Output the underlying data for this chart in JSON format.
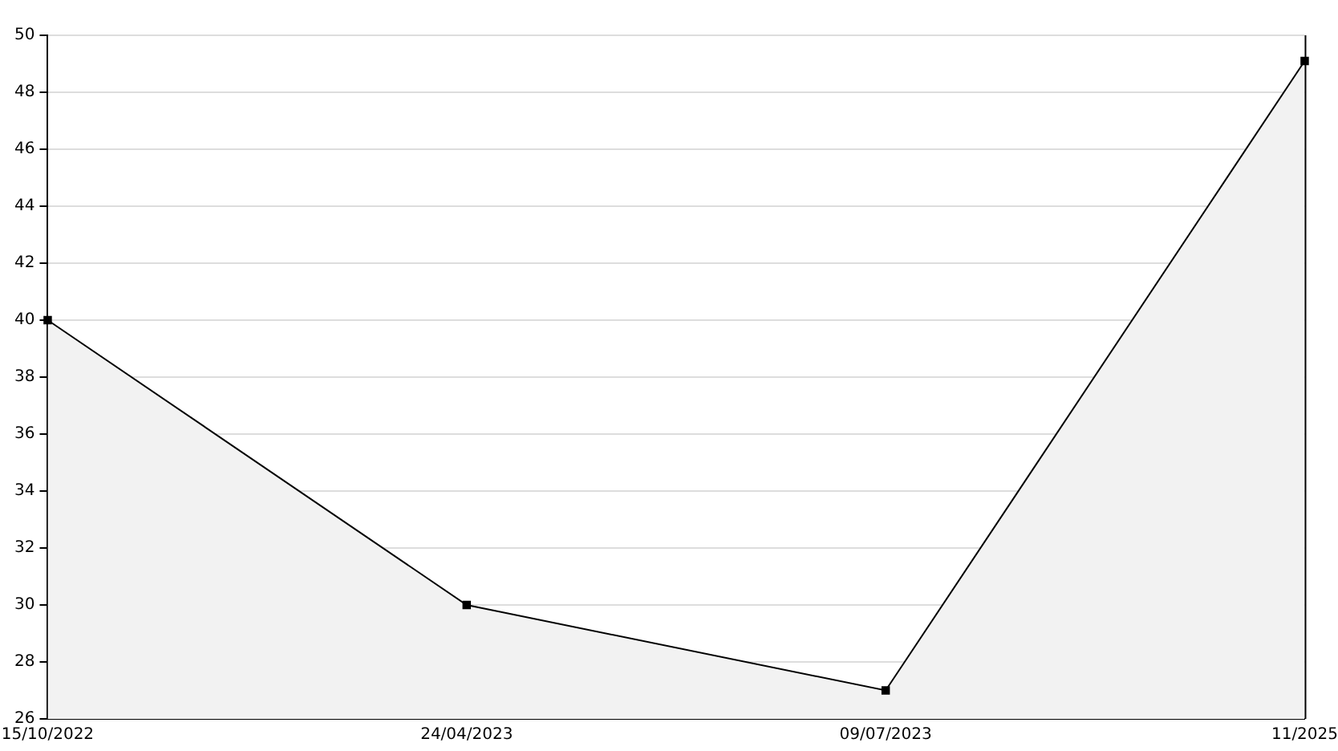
{
  "chart_data": {
    "type": "area",
    "categories": [
      "15/10/2022",
      "24/04/2023",
      "09/07/2023",
      "11/2025"
    ],
    "series": [
      {
        "color": "#000000",
        "values": [
          40,
          30,
          27,
          49.1
        ]
      }
    ],
    "ylim": [
      26,
      50
    ],
    "yticks": [
      26,
      28,
      30,
      32,
      34,
      36,
      38,
      40,
      42,
      44,
      46,
      48,
      50
    ],
    "grid": "y",
    "marker": "square",
    "line_style": "solid",
    "legend": false
  }
}
